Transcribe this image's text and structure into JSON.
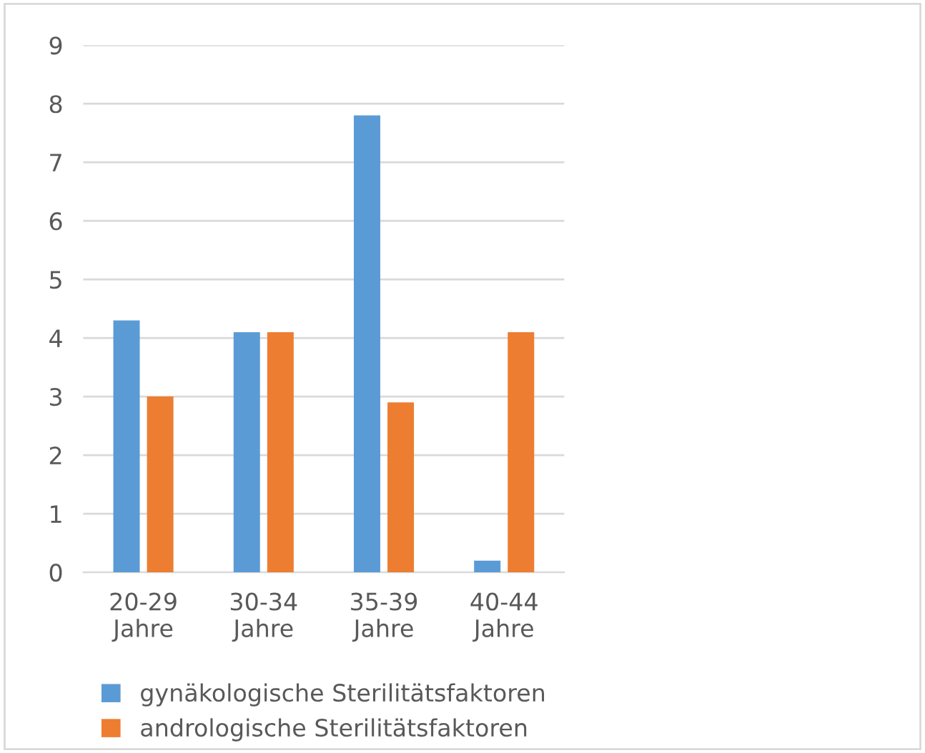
{
  "chart_data": {
    "type": "bar",
    "categories": [
      "20-29\nJahre",
      "30-34\nJahre",
      "35-39\nJahre",
      "40-44\nJahre"
    ],
    "series": [
      {
        "name": "gynäkologische Sterilitätsfaktoren",
        "color": "#5b9bd5",
        "values": [
          4.3,
          4.1,
          7.8,
          0.2
        ]
      },
      {
        "name": "andrologische Sterilitätsfaktoren",
        "color": "#ed7d31",
        "values": [
          3.0,
          4.1,
          2.9,
          4.1
        ]
      }
    ],
    "ylim": [
      0,
      9
    ],
    "yticks": [
      0,
      1,
      2,
      3,
      4,
      5,
      6,
      7,
      8,
      9
    ],
    "grid": "y",
    "legend": "bottom"
  }
}
